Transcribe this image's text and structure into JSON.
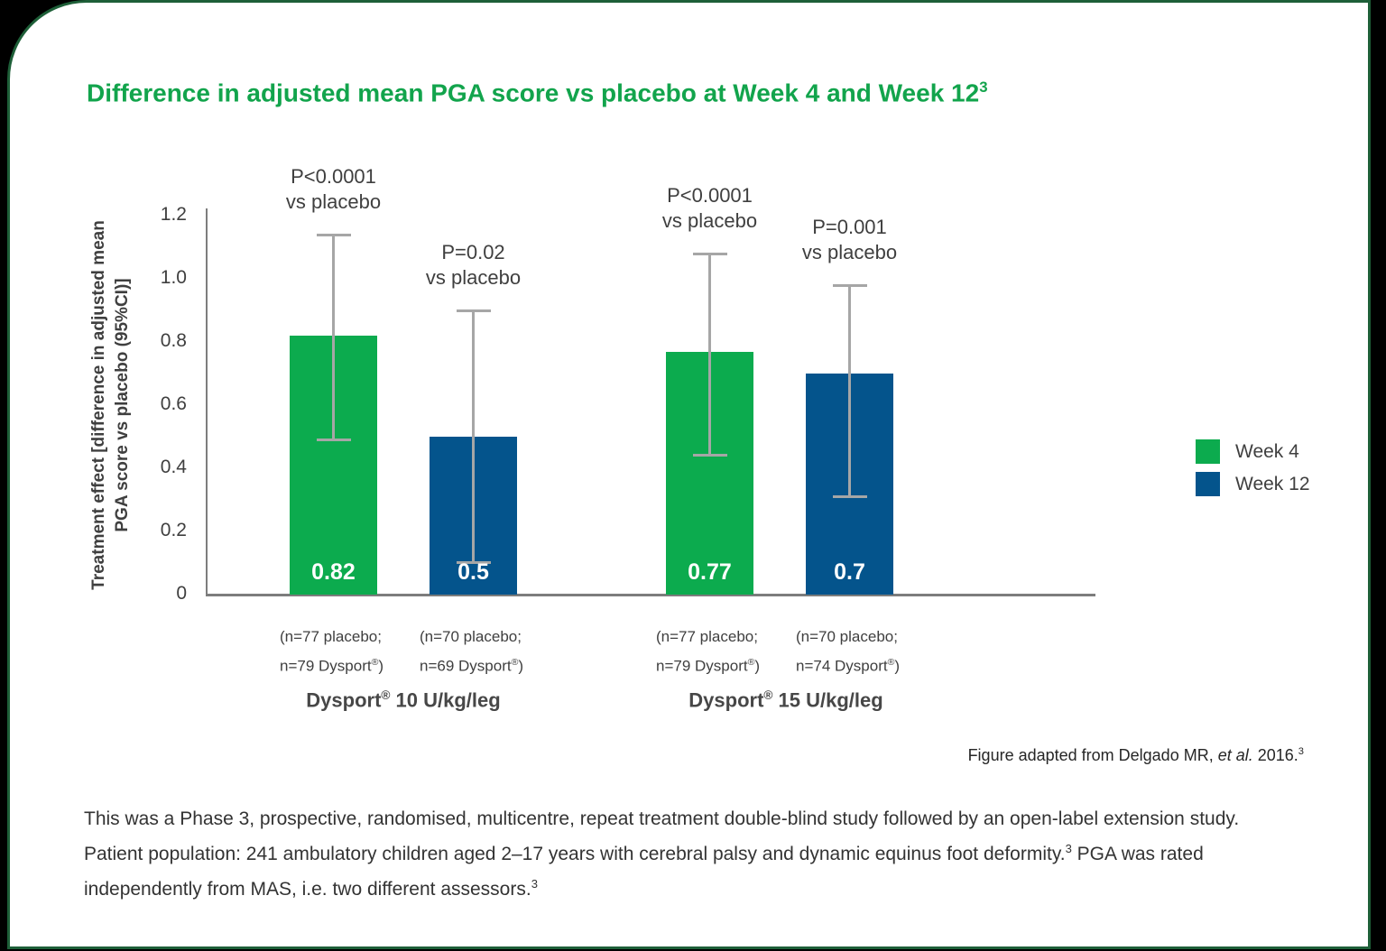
{
  "page": {
    "title": {
      "text": "Difference in adjusted mean PGA score vs placebo at Week 4 and Week 12",
      "superscript": "3"
    },
    "caption": {
      "part1": "Figure adapted from Delgado MR, ",
      "italic": "et al.",
      "part2": " 2016.",
      "superscript": "3"
    },
    "study_description": {
      "part1": "This was a Phase 3, prospective, randomised, multicentre, repeat treatment double-blind study followed by an open-label extension study. Patient population: 241 ambulatory children aged 2–17 years with cerebral palsy and dynamic equinus foot deformity.",
      "sup1": "3",
      "part2": " PGA was rated independently from MAS, i.e. two different assessors.",
      "sup2": "3"
    }
  },
  "colors": {
    "week4_green": "#0cab4e",
    "week12_blue": "#04548c",
    "title_green": "#12a44c",
    "border_green": "#1e5f38",
    "axis_gray": "#7d7d7d",
    "error_bar_gray": "#a6a6a6"
  },
  "chart_data": {
    "type": "bar",
    "title": "Difference in adjusted mean PGA score vs placebo at Week 4 and Week 12 (3)",
    "ylabel_line1": "Treatment effect [difference in adjusted mean",
    "ylabel_line2": "PGA score vs placebo (95%CI)]",
    "ylim": [
      0,
      1.2
    ],
    "yticks": [
      "0",
      "0.2",
      "0.4",
      "0.6",
      "0.8",
      "1.0",
      "1.2"
    ],
    "grid": false,
    "legend_position": "right",
    "categories": [
      "Dysport® 10 U/kg/leg",
      "Dysport® 15 U/kg/leg"
    ],
    "series": [
      {
        "name": "Week 4",
        "color": "#0cab4e",
        "values": [
          0.82,
          0.77
        ]
      },
      {
        "name": "Week 12",
        "color": "#04548c",
        "values": [
          0.5,
          0.7
        ]
      }
    ],
    "groups": [
      {
        "label_pre": "Dysport",
        "label_reg": "®",
        "label_post": " 10 U/kg/leg"
      },
      {
        "label_pre": "Dysport",
        "label_reg": "®",
        "label_post": " 15 U/kg/leg"
      }
    ],
    "bars": [
      {
        "group": "Dysport 10 U/kg/leg",
        "series": "Week 4",
        "value": 0.82,
        "value_label": "0.82",
        "ci_low": 0.49,
        "ci_high": 1.14,
        "p_line1": "P<0.0001",
        "p_line2": "vs placebo",
        "n_line1": "(n=77 placebo;",
        "n_line2": "n=79 Dysport®)"
      },
      {
        "group": "Dysport 10 U/kg/leg",
        "series": "Week 12",
        "value": 0.5,
        "value_label": "0.5",
        "ci_low": 0.1,
        "ci_high": 0.9,
        "p_line1": "P=0.02",
        "p_line2": "vs placebo",
        "n_line1": "(n=70 placebo;",
        "n_line2": "n=69 Dysport®)"
      },
      {
        "group": "Dysport 15 U/kg/leg",
        "series": "Week 4",
        "value": 0.77,
        "value_label": "0.77",
        "ci_low": 0.44,
        "ci_high": 1.08,
        "p_line1": "P<0.0001",
        "p_line2": "vs placebo",
        "n_line1": "(n=77 placebo;",
        "n_line2": "n=79 Dysport®)"
      },
      {
        "group": "Dysport 15 U/kg/leg",
        "series": "Week 12",
        "value": 0.7,
        "value_label": "0.7",
        "ci_low": 0.31,
        "ci_high": 0.98,
        "p_line1": "P=0.001",
        "p_line2": "vs placebo",
        "n_line1": "(n=70 placebo;",
        "n_line2": "n=74 Dysport®)"
      }
    ]
  }
}
